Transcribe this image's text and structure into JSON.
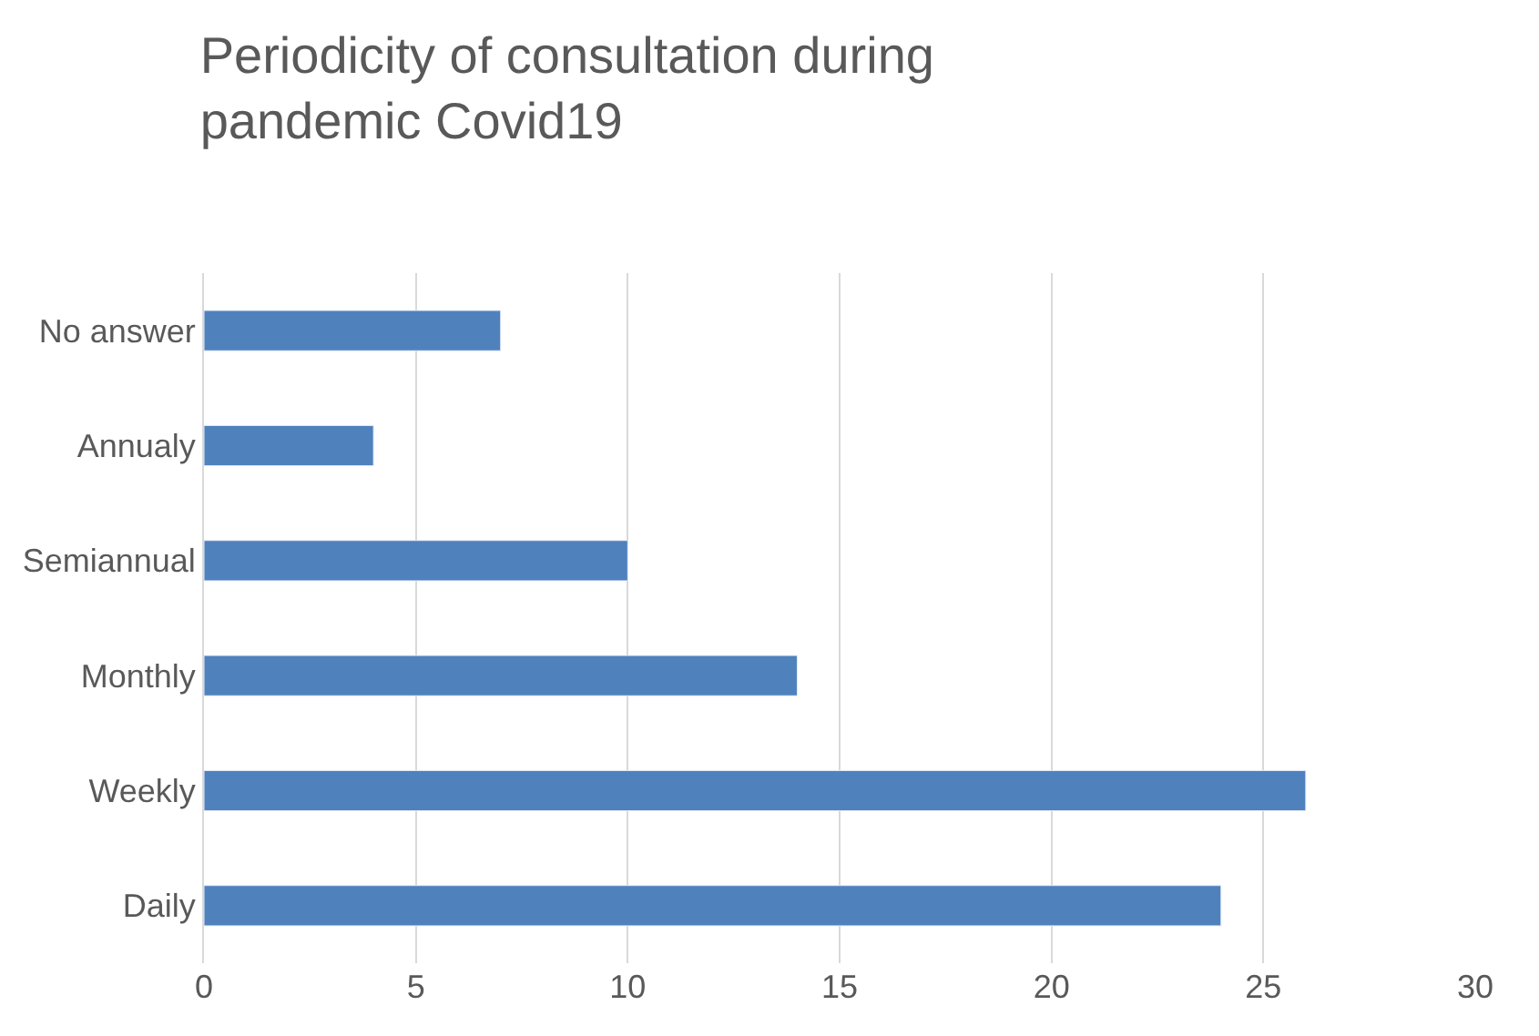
{
  "chart_data": {
    "type": "bar",
    "orientation": "horizontal",
    "title": "Periodicity of consultation during pandemic Covid19",
    "categories": [
      "No answer",
      "Annualy",
      "Semiannual",
      "Monthly",
      "Weekly",
      "Daily"
    ],
    "values": [
      7,
      4,
      10,
      14,
      26,
      24
    ],
    "color": "#4f81bd",
    "xlim": [
      0,
      30
    ],
    "xticks": [
      0,
      5,
      10,
      15,
      20,
      25,
      30
    ],
    "grid": "x"
  }
}
